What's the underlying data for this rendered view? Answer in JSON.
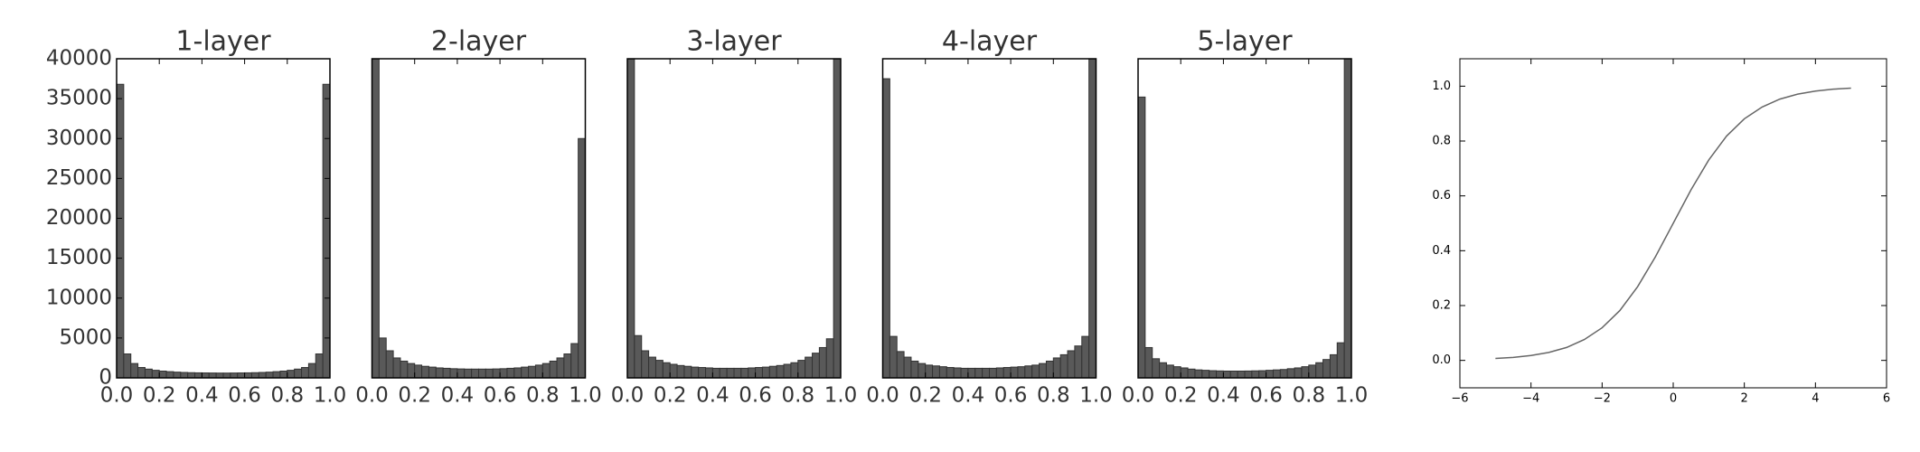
{
  "chart_data": [
    {
      "type": "histogram",
      "title": "1-layer",
      "color": "#595959",
      "edgecolor": "#333333",
      "bins": [
        0,
        0.0333,
        0.0667,
        0.1,
        0.1333,
        0.1667,
        0.2,
        0.2333,
        0.2667,
        0.3,
        0.3333,
        0.3667,
        0.4,
        0.4333,
        0.4667,
        0.5,
        0.5333,
        0.5667,
        0.6,
        0.6333,
        0.6667,
        0.7,
        0.7333,
        0.7667,
        0.8,
        0.8333,
        0.8667,
        0.9,
        0.9333,
        0.9667,
        1
      ],
      "values": [
        36800,
        3000,
        1800,
        1300,
        1100,
        950,
        850,
        780,
        720,
        680,
        650,
        630,
        620,
        610,
        600,
        600,
        610,
        620,
        630,
        650,
        680,
        720,
        780,
        850,
        950,
        1100,
        1300,
        1800,
        3000,
        36800
      ],
      "xlim": [
        0,
        1
      ],
      "xticks": [
        {
          "value": 0,
          "label": "0.0"
        },
        0.2,
        0.4,
        0.6,
        0.8,
        {
          "value": 1,
          "label": "1.0"
        }
      ],
      "ylim": [
        0,
        40000
      ],
      "yticks": [
        0,
        5000,
        10000,
        15000,
        20000,
        25000,
        30000,
        35000,
        40000
      ]
    },
    {
      "type": "histogram",
      "title": "2-layer",
      "color": "#595959",
      "edgecolor": "#333333",
      "bins": [
        0,
        0.0333,
        0.0667,
        0.1,
        0.1333,
        0.1667,
        0.2,
        0.2333,
        0.2667,
        0.3,
        0.3333,
        0.3667,
        0.4,
        0.4333,
        0.4667,
        0.5,
        0.5333,
        0.5667,
        0.6,
        0.6333,
        0.6667,
        0.7,
        0.7333,
        0.7667,
        0.8,
        0.8333,
        0.8667,
        0.9,
        0.9333,
        0.9667,
        1
      ],
      "values": [
        40000,
        5000,
        3400,
        2500,
        2100,
        1800,
        1600,
        1450,
        1350,
        1250,
        1200,
        1150,
        1120,
        1100,
        1100,
        1100,
        1100,
        1120,
        1150,
        1200,
        1250,
        1350,
        1450,
        1600,
        1800,
        2100,
        2500,
        3000,
        4300,
        30000
      ],
      "xlim": [
        0,
        1
      ],
      "xticks": [
        {
          "value": 0,
          "label": "0.0"
        },
        0.2,
        0.4,
        0.6,
        0.8,
        {
          "value": 1,
          "label": "1.0"
        }
      ],
      "ylim": [
        0,
        40000
      ]
    },
    {
      "type": "histogram",
      "title": "3-layer",
      "color": "#595959",
      "edgecolor": "#333333",
      "bins": [
        0,
        0.0333,
        0.0667,
        0.1,
        0.1333,
        0.1667,
        0.2,
        0.2333,
        0.2667,
        0.3,
        0.3333,
        0.3667,
        0.4,
        0.4333,
        0.4667,
        0.5,
        0.5333,
        0.5667,
        0.6,
        0.6333,
        0.6667,
        0.7,
        0.7333,
        0.7667,
        0.8,
        0.8333,
        0.8667,
        0.9,
        0.9333,
        0.9667,
        1
      ],
      "values": [
        40000,
        5300,
        3400,
        2600,
        2200,
        1900,
        1700,
        1550,
        1450,
        1350,
        1300,
        1250,
        1200,
        1200,
        1200,
        1200,
        1200,
        1250,
        1300,
        1350,
        1450,
        1550,
        1700,
        1900,
        2200,
        2600,
        3100,
        3800,
        4900,
        40000
      ],
      "xlim": [
        0,
        1
      ],
      "xticks": [
        {
          "value": 0,
          "label": "0.0"
        },
        0.2,
        0.4,
        0.6,
        0.8,
        {
          "value": 1,
          "label": "1.0"
        }
      ],
      "ylim": [
        0,
        40000
      ]
    },
    {
      "type": "histogram",
      "title": "4-layer",
      "color": "#595959",
      "edgecolor": "#333333",
      "bins": [
        0,
        0.0333,
        0.0667,
        0.1,
        0.1333,
        0.1667,
        0.2,
        0.2333,
        0.2667,
        0.3,
        0.3333,
        0.3667,
        0.4,
        0.4333,
        0.4667,
        0.5,
        0.5333,
        0.5667,
        0.6,
        0.6333,
        0.6667,
        0.7,
        0.7333,
        0.7667,
        0.8,
        0.8333,
        0.8667,
        0.9,
        0.9333,
        0.9667,
        1
      ],
      "values": [
        37500,
        5200,
        3300,
        2600,
        2100,
        1800,
        1600,
        1500,
        1400,
        1300,
        1250,
        1200,
        1200,
        1200,
        1200,
        1200,
        1250,
        1300,
        1350,
        1400,
        1500,
        1600,
        1800,
        2100,
        2500,
        2900,
        3400,
        4000,
        5200,
        40000
      ],
      "xlim": [
        0,
        1
      ],
      "xticks": [
        {
          "value": 0,
          "label": "0.0"
        },
        0.2,
        0.4,
        0.6,
        0.8,
        {
          "value": 1,
          "label": "1.0"
        }
      ],
      "ylim": [
        0,
        40000
      ]
    },
    {
      "type": "histogram",
      "title": "5-layer",
      "color": "#595959",
      "edgecolor": "#333333",
      "bins": [
        0,
        0.0333,
        0.0667,
        0.1,
        0.1333,
        0.1667,
        0.2,
        0.2333,
        0.2667,
        0.3,
        0.3333,
        0.3667,
        0.4,
        0.4333,
        0.4667,
        0.5,
        0.5333,
        0.5667,
        0.6,
        0.6333,
        0.6667,
        0.7,
        0.7333,
        0.7667,
        0.8,
        0.8333,
        0.8667,
        0.9,
        0.9333,
        0.9667,
        1
      ],
      "values": [
        35200,
        3800,
        2400,
        1900,
        1600,
        1400,
        1250,
        1100,
        1000,
        950,
        900,
        870,
        850,
        850,
        850,
        860,
        880,
        900,
        950,
        1000,
        1050,
        1150,
        1250,
        1400,
        1600,
        1900,
        2300,
        2900,
        4400,
        40000
      ],
      "xlim": [
        0,
        1
      ],
      "xticks": [
        {
          "value": 0,
          "label": "0.0"
        },
        0.2,
        0.4,
        0.6,
        0.8,
        {
          "value": 1,
          "label": "1.0"
        }
      ],
      "ylim": [
        0,
        40000
      ]
    },
    {
      "type": "line",
      "color": "#666666",
      "x": [
        -5,
        -4.5,
        -4,
        -3.5,
        -3,
        -2.5,
        -2,
        -1.5,
        -1,
        -0.5,
        0,
        0.5,
        1,
        1.5,
        2,
        2.5,
        3,
        3.5,
        4,
        4.5,
        5
      ],
      "values": [
        0.007,
        0.011,
        0.018,
        0.029,
        0.047,
        0.076,
        0.119,
        0.182,
        0.269,
        0.378,
        0.5,
        0.622,
        0.731,
        0.818,
        0.881,
        0.924,
        0.953,
        0.971,
        0.982,
        0.989,
        0.993
      ],
      "xlim": [
        -6,
        6
      ],
      "xticks": [
        {
          "value": -6,
          "label": "−6"
        },
        {
          "value": -4,
          "label": "−4"
        },
        {
          "value": -2,
          "label": "−2"
        },
        0,
        2,
        4,
        6
      ],
      "ylim": [
        -0.1,
        1.1
      ],
      "yticks": [
        {
          "value": 0,
          "label": "0.0"
        },
        0.2,
        0.4,
        0.6,
        0.8,
        {
          "value": 1,
          "label": "1.0"
        }
      ]
    }
  ]
}
